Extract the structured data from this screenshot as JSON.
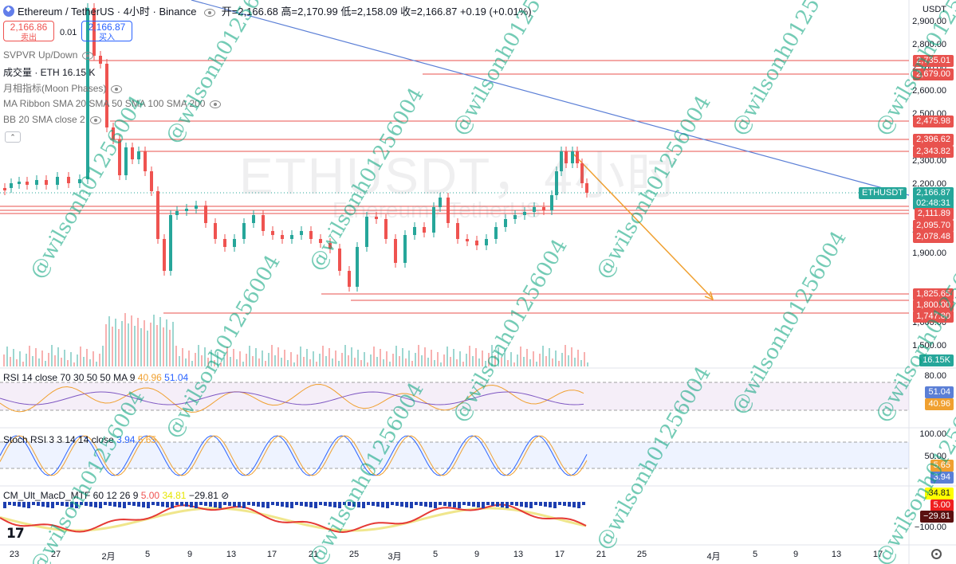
{
  "header": {
    "symbol": "Ethereum / TetherUS · 4小时 · Binance",
    "ohlc": "开=2,166.68 高=2,170.99 低=2,158.09 收=2,166.87 +0.19 (+0.01%)",
    "currency": "USDT"
  },
  "trade": {
    "sell_price": "2,166.86",
    "sell_label": "卖出",
    "spread": "0.01",
    "buy_price": "2,166.87",
    "buy_label": "买入"
  },
  "indicators": [
    "SVPVR Up/Down",
    "成交量 · ETH  16.15 K",
    "月相指标(Moon Phases)",
    "MA Ribbon SMA 20 SMA 50 SMA 100 SMA 200",
    "BB 20 SMA close 2"
  ],
  "watermark": {
    "main": "ETHUSDT，4小时",
    "sub": "Ethereum / TetherUS",
    "user": "@wilsonh01256004"
  },
  "price_axis": [
    "2,900.00",
    "2,800.00",
    "2,700.00",
    "2,600.00",
    "2,500.00",
    "2,300.00",
    "2,200.00",
    "2,000.00",
    "1,900.00",
    "1,600.00",
    "1,500.00"
  ],
  "price_tags": [
    {
      "label": "2,735.01",
      "color": "#e8524e"
    },
    {
      "label": "2,679.00",
      "color": "#e8524e"
    },
    {
      "label": "2,475.98",
      "color": "#e8524e"
    },
    {
      "label": "2,396.62",
      "color": "#e8524e"
    },
    {
      "label": "2,343.82",
      "color": "#e8524e"
    },
    {
      "label": "2,166.87",
      "color": "#26a69a"
    },
    {
      "label": "02:48:31",
      "color": "#26a69a"
    },
    {
      "label": "2,111.89",
      "color": "#e8524e"
    },
    {
      "label": "2,095.70",
      "color": "#e8524e"
    },
    {
      "label": "2,078.48",
      "color": "#e8524e"
    },
    {
      "label": "1,825.65",
      "color": "#e8524e"
    },
    {
      "label": "1,800.00",
      "color": "#e8524e"
    },
    {
      "label": "1,747.80",
      "color": "#e8524e"
    },
    {
      "label": "16.15K",
      "color": "#26a69a"
    }
  ],
  "ethusdt_tag": "ETHUSDT",
  "rsi": {
    "legend": "RSI 14 close 70 30 50 50 MA 9",
    "v1": "40.96",
    "v2": "51.04",
    "axis": "80.00"
  },
  "stoch": {
    "legend": "Stoch RSI 3 3 14 14 close",
    "v1": "3.94",
    "v2": "5.65",
    "axis_top": "100.00",
    "axis_mid": "50.00"
  },
  "macd": {
    "legend": "CM_Ult_MacD_MTF 60 12 26 9",
    "v1": "5.00",
    "v2": "34.81",
    "v3": "−29.81",
    "axis": "−100.00"
  },
  "time_axis": [
    "23",
    "27",
    "2月",
    "5",
    "9",
    "13",
    "17",
    "21",
    "25",
    "3月",
    "5",
    "9",
    "13",
    "17",
    "21",
    "25",
    "4月",
    "5",
    "9",
    "13",
    "17"
  ],
  "colors": {
    "up": "#26a69a",
    "down": "#ef5350",
    "level": "#e8524e",
    "trend": "#5b7fd6",
    "arrow": "#f0a030"
  }
}
